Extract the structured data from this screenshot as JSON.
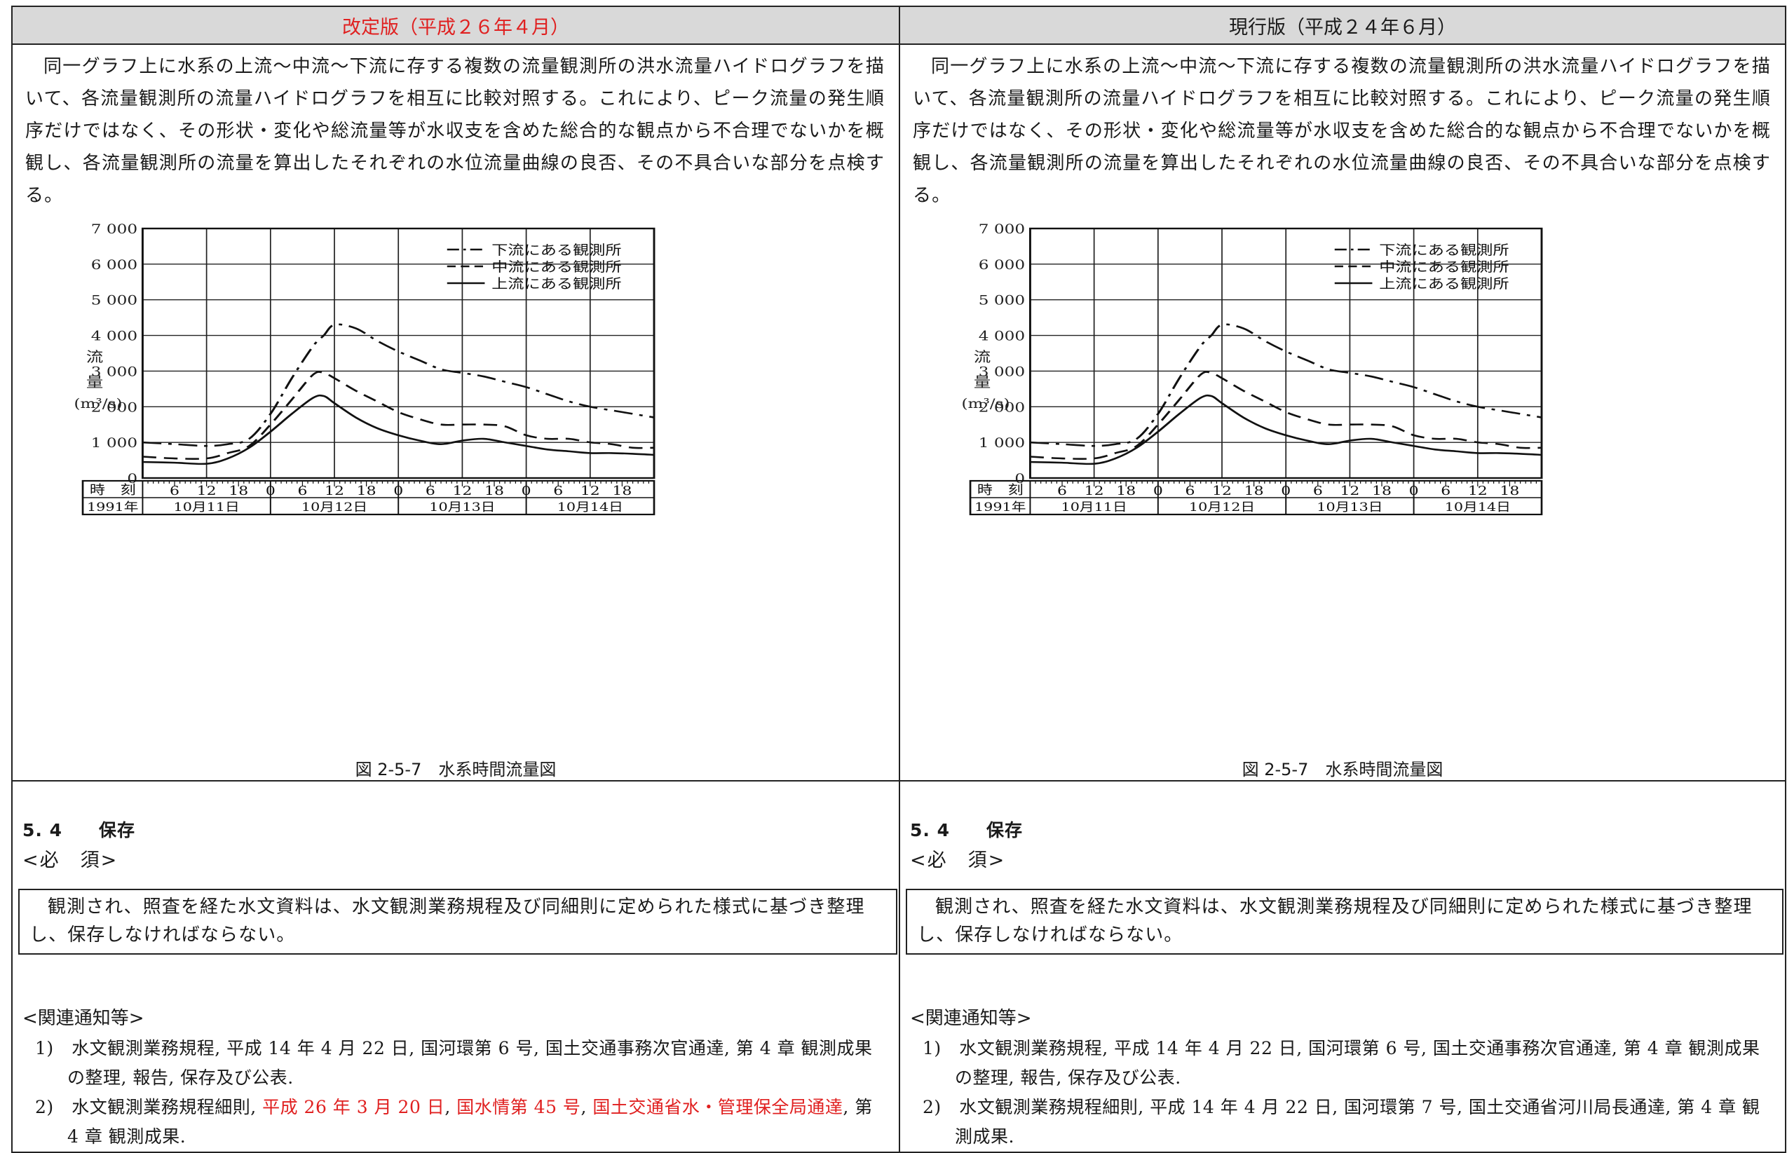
{
  "columns": [
    {
      "id": "revised",
      "header": "改定版（平成２６年４月）",
      "header_color": "#e02020",
      "paragraph": "同一グラフ上に水系の上流〜中流〜下流に存する複数の流量観測所の洪水流量ハイドログラフを描いて、各流量観測所の流量ハイドログラフを相互に比較対照する。これにより、ピーク流量の発生順序だけではなく、その形状・変化や総流量等が水収支を含めた総合的な観点から不合理でないかを概観し、各流量観測所の流量を算出したそれぞれの水位流量曲線の良否、その不具合いな部分を点検する。",
      "caption": "図 2-5-7　水系時間流量図",
      "section_title": "5. 4　　保存",
      "section_sub": "<必　須>",
      "box_text": "観測され、照査を経た水文資料は、水文観測業務規程及び同細則に定められた様式に基づき整理し、保存しなければならない。",
      "ref_title": "<関連通知等>",
      "refs": [
        {
          "num": "1)",
          "parts": [
            {
              "text": "水文観測業務規程, 平成 14 年 4 月 22 日, 国河環第 6 号, 国土交通事務次官通達, 第 4 章 観測成果の整理, 報告, 保存及び公表.",
              "red": false
            }
          ]
        },
        {
          "num": "2)",
          "parts": [
            {
              "text": "水文観測業務規程細則, ",
              "red": false
            },
            {
              "text": "平成 26 年 3 月 20 日",
              "red": true
            },
            {
              "text": ", ",
              "red": false
            },
            {
              "text": "国水情第 45 号",
              "red": true
            },
            {
              "text": ", ",
              "red": false
            },
            {
              "text": "国土交通省水・管理保全局通達",
              "red": true
            },
            {
              "text": ", 第 4 章 観測成果.",
              "red": false
            }
          ]
        }
      ]
    },
    {
      "id": "current",
      "header": "現行版（平成２４年６月）",
      "header_color": "#1a1a1a",
      "paragraph": "同一グラフ上に水系の上流〜中流〜下流に存する複数の流量観測所の洪水流量ハイドログラフを描いて、各流量観測所の流量ハイドログラフを相互に比較対照する。これにより、ピーク流量の発生順序だけではなく、その形状・変化や総流量等が水収支を含めた総合的な観点から不合理でないかを概観し、各流量観測所の流量を算出したそれぞれの水位流量曲線の良否、その不具合いな部分を点検する。",
      "caption": "図 2-5-7　水系時間流量図",
      "section_title": "5. 4　　保存",
      "section_sub": "<必　須>",
      "box_text": "観測され、照査を経た水文資料は、水文観測業務規程及び同細則に定められた様式に基づき整理し、保存しなければならない。",
      "ref_title": "<関連通知等>",
      "refs": [
        {
          "num": "1)",
          "parts": [
            {
              "text": "水文観測業務規程, 平成 14 年 4 月 22 日, 国河環第 6 号, 国土交通事務次官通達, 第 4 章 観測成果の整理, 報告, 保存及び公表.",
              "red": false
            }
          ]
        },
        {
          "num": "2)",
          "parts": [
            {
              "text": "水文観測業務規程細則, 平成 14 年 4 月 22 日, 国河環第 7 号, 国土交通省河川局長通達, 第 4 章 観測成果.",
              "red": false
            }
          ]
        }
      ]
    }
  ],
  "chart_data": {
    "type": "line",
    "title": "",
    "ylabel": "流量(m³/s)",
    "ylabel_chars": [
      "流",
      "量",
      "(m³/s)"
    ],
    "ylim": [
      0,
      7000
    ],
    "yticks": [
      0,
      1000,
      2000,
      3000,
      4000,
      5000,
      6000,
      7000
    ],
    "ytick_labels": [
      "0",
      "1 000",
      "2 000",
      "3 000",
      "4 000",
      "5 000",
      "6 000",
      "7 000"
    ],
    "xlim": [
      0,
      96
    ],
    "x_unit": "hours from 1991-10-11 00:00",
    "time_row_label": "時　刻",
    "time_ticks": [
      6,
      12,
      18,
      24,
      30,
      36,
      42,
      48,
      54,
      60,
      66,
      72,
      78,
      84,
      90
    ],
    "time_tick_labels": [
      "6",
      "12",
      "18",
      "0",
      "6",
      "12",
      "18",
      "0",
      "6",
      "12",
      "18",
      "0",
      "6",
      "12",
      "18"
    ],
    "year_label": "1991年",
    "days": [
      "10月11日",
      "10月12日",
      "10月13日",
      "10月14日"
    ],
    "legend_position": "top-right",
    "grid": true,
    "series": [
      {
        "name": "下流にある観測所",
        "style": "dash-dot",
        "x": [
          0,
          6,
          12,
          16,
          20,
          24,
          28,
          32,
          34,
          36,
          40,
          44,
          48,
          52,
          56,
          60,
          64,
          68,
          72,
          76,
          80,
          84,
          88,
          92,
          96
        ],
        "y": [
          1000,
          950,
          900,
          950,
          1100,
          1800,
          2800,
          3700,
          4000,
          4300,
          4200,
          3850,
          3550,
          3300,
          3050,
          2950,
          2850,
          2700,
          2550,
          2350,
          2150,
          2000,
          1900,
          1800,
          1700
        ]
      },
      {
        "name": "中流にある観測所",
        "style": "dashed",
        "x": [
          0,
          6,
          12,
          16,
          20,
          24,
          28,
          32,
          34,
          36,
          40,
          44,
          48,
          52,
          56,
          60,
          64,
          68,
          72,
          76,
          80,
          84,
          88,
          92,
          96
        ],
        "y": [
          600,
          550,
          550,
          700,
          900,
          1500,
          2200,
          2900,
          2950,
          2800,
          2450,
          2150,
          1850,
          1650,
          1500,
          1500,
          1500,
          1450,
          1200,
          1100,
          1100,
          1000,
          950,
          850,
          850
        ]
      },
      {
        "name": "上流にある観測所",
        "style": "solid",
        "x": [
          0,
          6,
          12,
          16,
          20,
          24,
          28,
          32,
          34,
          36,
          40,
          44,
          48,
          52,
          56,
          60,
          64,
          68,
          72,
          76,
          80,
          84,
          88,
          92,
          96
        ],
        "y": [
          450,
          430,
          400,
          550,
          850,
          1300,
          1800,
          2250,
          2300,
          2100,
          1700,
          1400,
          1200,
          1050,
          950,
          1050,
          1100,
          1000,
          900,
          800,
          750,
          700,
          700,
          680,
          650
        ]
      }
    ]
  }
}
